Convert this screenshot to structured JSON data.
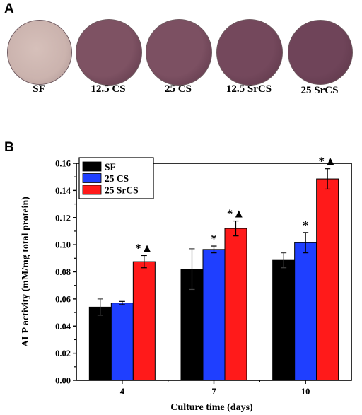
{
  "panel_a": {
    "label": "A",
    "wells": [
      {
        "caption": "SF",
        "color": "#cbb3ae"
      },
      {
        "caption": "12.5 CS",
        "color": "#7e5263"
      },
      {
        "caption": "25 CS",
        "color": "#7c5062"
      },
      {
        "caption": "12.5 SrCS",
        "color": "#74485c"
      },
      {
        "caption": "25 SrCS",
        "color": "#6f4459"
      }
    ]
  },
  "panel_b": {
    "label": "B"
  },
  "chart_data": {
    "type": "bar",
    "categories": [
      "4",
      "7",
      "10"
    ],
    "xlabel": "Culture time (days)",
    "ylabel": "ALP activity (mM/mg total protein)",
    "ylim": [
      0.0,
      0.16
    ],
    "yticks": [
      "0.00",
      "0.02",
      "0.04",
      "0.06",
      "0.08",
      "0.10",
      "0.12",
      "0.14",
      "0.16"
    ],
    "legend_position": "top-left",
    "series": [
      {
        "name": "SF",
        "color": "#000000",
        "values": [
          0.054,
          0.082,
          0.0885
        ],
        "errors": [
          0.006,
          0.015,
          0.0055
        ],
        "marks": [
          "",
          "",
          ""
        ]
      },
      {
        "name": "25 CS",
        "color": "#1f3fff",
        "values": [
          0.057,
          0.0965,
          0.1015
        ],
        "errors": [
          0.0012,
          0.0025,
          0.0075
        ],
        "marks": [
          "",
          "*",
          "*"
        ]
      },
      {
        "name": "25 SrCS",
        "color": "#ff1a1a",
        "values": [
          0.0875,
          0.112,
          0.1485
        ],
        "errors": [
          0.0045,
          0.0055,
          0.0075
        ],
        "marks": [
          "*▲",
          "*▲",
          "*▲"
        ]
      }
    ]
  }
}
